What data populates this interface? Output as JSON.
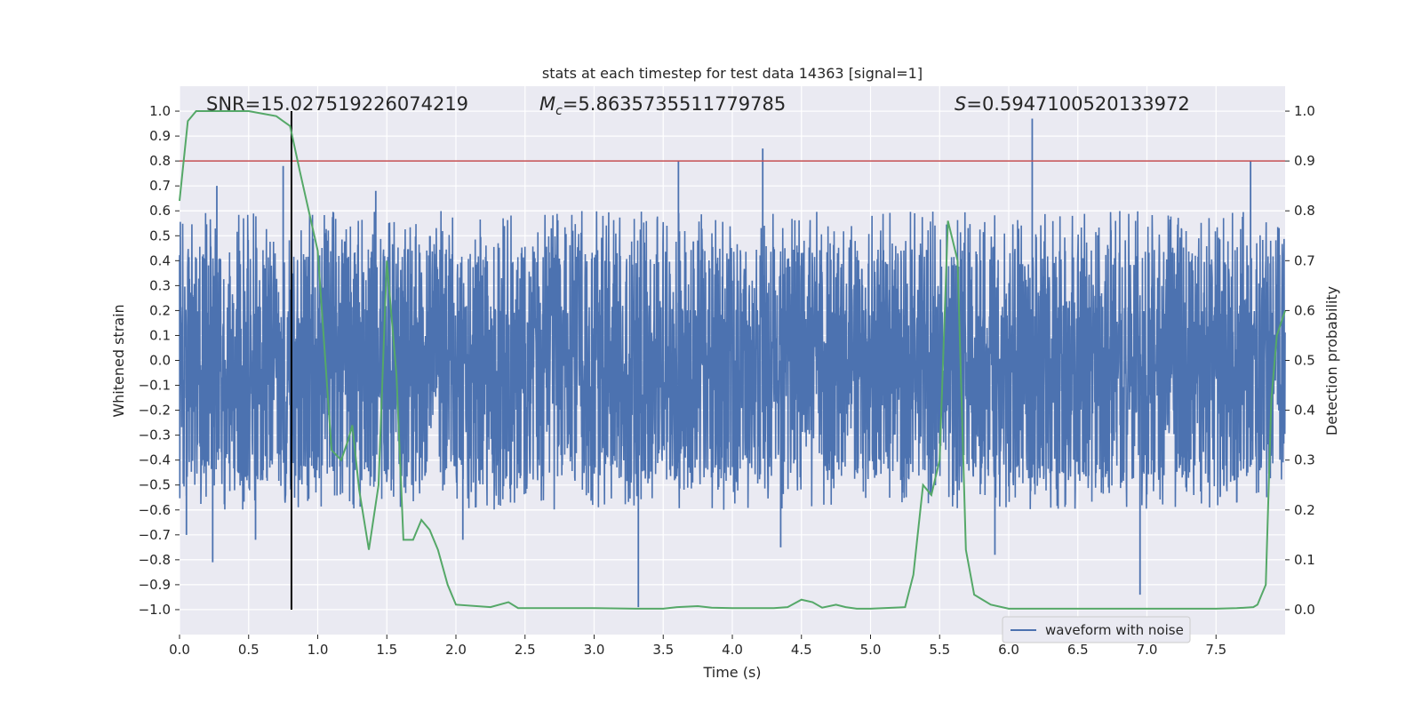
{
  "chart_data": {
    "type": "line",
    "title": "stats at each timestep for test data 14363 [signal=1]",
    "xlabel": "Time (s)",
    "ylabel_left": "Whitened strain",
    "ylabel_right": "Detection probability",
    "xlim": [
      0.0,
      8.0
    ],
    "ylim_left": [
      -1.1,
      1.1
    ],
    "ylim_right": [
      -0.05,
      1.05
    ],
    "x_ticks": [
      "0.0",
      "0.5",
      "1.0",
      "1.5",
      "2.0",
      "2.5",
      "3.0",
      "3.5",
      "4.0",
      "4.5",
      "5.0",
      "5.5",
      "6.0",
      "6.5",
      "7.0",
      "7.5"
    ],
    "x_tick_values": [
      0.0,
      0.5,
      1.0,
      1.5,
      2.0,
      2.5,
      3.0,
      3.5,
      4.0,
      4.5,
      5.0,
      5.5,
      6.0,
      6.5,
      7.0,
      7.5
    ],
    "y_left_ticks": [
      "1.0",
      "0.9",
      "0.8",
      "0.7",
      "0.6",
      "0.5",
      "0.4",
      "0.3",
      "0.2",
      "0.1",
      "0.0",
      "−0.1",
      "−0.2",
      "−0.3",
      "−0.4",
      "−0.5",
      "−0.6",
      "−0.7",
      "−0.8",
      "−0.9",
      "−1.0"
    ],
    "y_left_tick_values": [
      1.0,
      0.9,
      0.8,
      0.7,
      0.6,
      0.5,
      0.4,
      0.3,
      0.2,
      0.1,
      0.0,
      -0.1,
      -0.2,
      -0.3,
      -0.4,
      -0.5,
      -0.6,
      -0.7,
      -0.8,
      -0.9,
      -1.0
    ],
    "y_right_ticks": [
      "1.0",
      "0.9",
      "0.8",
      "0.7",
      "0.6",
      "0.5",
      "0.4",
      "0.3",
      "0.2",
      "0.1",
      "0.0"
    ],
    "y_right_tick_values": [
      1.0,
      0.9,
      0.8,
      0.7,
      0.6,
      0.5,
      0.4,
      0.3,
      0.2,
      0.1,
      0.0
    ],
    "stats": {
      "snr": "SNR=15.027519226074219",
      "mc_prefix": "M",
      "mc_sub": "c",
      "mc_value": "=5.8635735511779785",
      "s_prefix": "S",
      "s_value": "=0.5947100520133972"
    },
    "threshold_line": {
      "y_right": 0.9,
      "color": "#c44e52"
    },
    "marker_line": {
      "x": 0.81,
      "y_left_range": [
        -1.0,
        1.0
      ],
      "color": "#000000"
    },
    "series": [
      {
        "name": "waveform with noise",
        "axis": "left",
        "color": "#4c72b0",
        "envelope": {
          "upper_typical": 0.38,
          "lower_typical": -0.42,
          "duration": 8.0
        },
        "spikes": [
          {
            "x": 0.05,
            "y": -0.7
          },
          {
            "x": 0.24,
            "y": -0.81
          },
          {
            "x": 0.27,
            "y": 0.7
          },
          {
            "x": 0.55,
            "y": -0.72
          },
          {
            "x": 0.75,
            "y": 0.78
          },
          {
            "x": 3.32,
            "y": -0.99
          },
          {
            "x": 3.61,
            "y": 0.8
          },
          {
            "x": 4.22,
            "y": 0.85
          },
          {
            "x": 6.17,
            "y": 0.97
          },
          {
            "x": 6.95,
            "y": -0.94
          },
          {
            "x": 7.75,
            "y": 0.8
          },
          {
            "x": 1.42,
            "y": 0.68
          },
          {
            "x": 2.05,
            "y": -0.72
          },
          {
            "x": 4.35,
            "y": -0.75
          },
          {
            "x": 5.9,
            "y": -0.78
          }
        ]
      },
      {
        "name": "detection probability",
        "axis": "right",
        "color": "#55a868",
        "x": [
          0.0,
          0.06,
          0.12,
          0.2,
          0.5,
          0.7,
          0.75,
          0.8,
          0.87,
          1.0,
          1.1,
          1.17,
          1.22,
          1.25,
          1.3,
          1.37,
          1.44,
          1.5,
          1.57,
          1.62,
          1.69,
          1.75,
          1.81,
          1.87,
          1.94,
          2.0,
          2.25,
          2.38,
          2.45,
          2.6,
          3.0,
          3.3,
          3.5,
          3.6,
          3.75,
          3.85,
          4.0,
          4.3,
          4.4,
          4.5,
          4.58,
          4.65,
          4.75,
          4.82,
          4.9,
          5.0,
          5.25,
          5.31,
          5.38,
          5.44,
          5.5,
          5.56,
          5.63,
          5.69,
          5.75,
          5.81,
          5.87,
          6.0,
          6.1,
          6.25,
          6.5,
          6.75,
          7.0,
          7.25,
          7.5,
          7.65,
          7.77,
          7.8,
          7.86,
          7.9,
          7.94,
          8.0
        ],
        "y": [
          0.82,
          0.98,
          1.0,
          1.0,
          1.0,
          0.99,
          0.98,
          0.97,
          0.88,
          0.72,
          0.32,
          0.3,
          0.34,
          0.37,
          0.24,
          0.12,
          0.25,
          0.7,
          0.47,
          0.14,
          0.14,
          0.18,
          0.16,
          0.12,
          0.05,
          0.01,
          0.005,
          0.015,
          0.003,
          0.003,
          0.003,
          0.002,
          0.002,
          0.005,
          0.007,
          0.004,
          0.003,
          0.003,
          0.005,
          0.02,
          0.015,
          0.004,
          0.01,
          0.005,
          0.002,
          0.002,
          0.005,
          0.07,
          0.25,
          0.23,
          0.3,
          0.78,
          0.7,
          0.12,
          0.03,
          0.02,
          0.01,
          0.002,
          0.002,
          0.002,
          0.002,
          0.002,
          0.002,
          0.002,
          0.002,
          0.003,
          0.005,
          0.01,
          0.05,
          0.42,
          0.55,
          0.6
        ]
      }
    ],
    "legend": {
      "entries": [
        "waveform with noise"
      ],
      "placement": "lower-right"
    }
  }
}
